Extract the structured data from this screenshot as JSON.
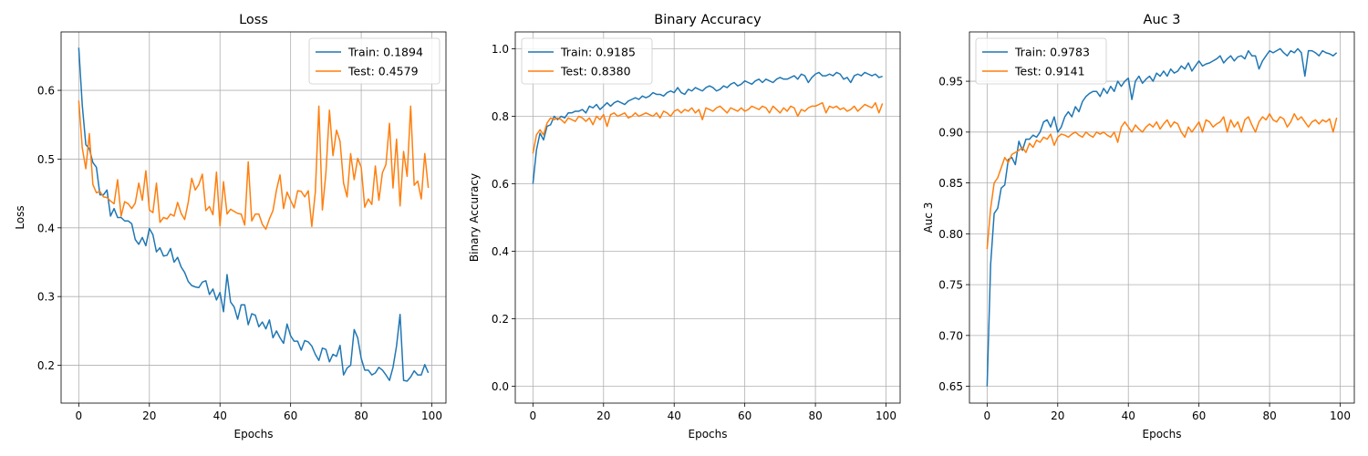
{
  "chart_data": [
    {
      "type": "line",
      "title": "Loss",
      "xlabel": "Epochs",
      "ylabel": "Loss",
      "xlim": [
        -5,
        104
      ],
      "ylim": [
        0.145,
        0.685
      ],
      "xticks": [
        0,
        20,
        40,
        60,
        80,
        100
      ],
      "yticks": [
        0.2,
        0.3,
        0.4,
        0.5,
        0.6
      ],
      "tick_decimals": 1,
      "grid": true,
      "legend_position": "top-right",
      "series": [
        {
          "name": "Train: 0.1894",
          "color": "#1f77b4",
          "x_start": 0,
          "values": [
            0.662,
            0.578,
            0.521,
            0.515,
            0.495,
            0.488,
            0.448,
            0.448,
            0.455,
            0.417,
            0.428,
            0.415,
            0.415,
            0.41,
            0.41,
            0.406,
            0.383,
            0.376,
            0.386,
            0.374,
            0.399,
            0.39,
            0.365,
            0.371,
            0.359,
            0.36,
            0.37,
            0.35,
            0.357,
            0.343,
            0.335,
            0.322,
            0.316,
            0.314,
            0.313,
            0.321,
            0.323,
            0.303,
            0.311,
            0.295,
            0.306,
            0.278,
            0.332,
            0.292,
            0.285,
            0.267,
            0.288,
            0.288,
            0.259,
            0.275,
            0.273,
            0.256,
            0.263,
            0.253,
            0.266,
            0.24,
            0.25,
            0.24,
            0.232,
            0.26,
            0.243,
            0.235,
            0.235,
            0.222,
            0.236,
            0.234,
            0.228,
            0.216,
            0.207,
            0.225,
            0.223,
            0.205,
            0.216,
            0.213,
            0.229,
            0.186,
            0.196,
            0.2,
            0.252,
            0.24,
            0.21,
            0.193,
            0.193,
            0.186,
            0.189,
            0.197,
            0.193,
            0.186,
            0.178,
            0.197,
            0.228,
            0.274,
            0.178,
            0.177,
            0.183,
            0.192,
            0.186,
            0.186,
            0.201,
            0.189
          ]
        },
        {
          "name": "Test: 0.4579",
          "color": "#ff7f0e",
          "x_start": 0,
          "values": [
            0.585,
            0.516,
            0.486,
            0.537,
            0.463,
            0.451,
            0.453,
            0.445,
            0.444,
            0.439,
            0.435,
            0.47,
            0.417,
            0.438,
            0.435,
            0.428,
            0.436,
            0.465,
            0.44,
            0.483,
            0.426,
            0.422,
            0.465,
            0.408,
            0.415,
            0.413,
            0.42,
            0.417,
            0.437,
            0.421,
            0.412,
            0.437,
            0.472,
            0.455,
            0.463,
            0.478,
            0.425,
            0.431,
            0.419,
            0.481,
            0.403,
            0.467,
            0.42,
            0.427,
            0.424,
            0.421,
            0.42,
            0.404,
            0.496,
            0.41,
            0.42,
            0.42,
            0.405,
            0.398,
            0.413,
            0.425,
            0.455,
            0.477,
            0.428,
            0.452,
            0.44,
            0.429,
            0.454,
            0.453,
            0.445,
            0.454,
            0.402,
            0.452,
            0.577,
            0.426,
            0.48,
            0.571,
            0.505,
            0.542,
            0.526,
            0.465,
            0.445,
            0.508,
            0.47,
            0.501,
            0.488,
            0.43,
            0.442,
            0.434,
            0.49,
            0.44,
            0.48,
            0.492,
            0.552,
            0.458,
            0.529,
            0.432,
            0.511,
            0.475,
            0.577,
            0.462,
            0.468,
            0.442,
            0.508,
            0.458
          ]
        }
      ]
    },
    {
      "type": "line",
      "title": "Binary Accuracy",
      "xlabel": "Epochs",
      "ylabel": "Binary Accuracy",
      "xlim": [
        -5,
        104
      ],
      "ylim": [
        -0.05,
        1.05
      ],
      "xticks": [
        0,
        20,
        40,
        60,
        80,
        100
      ],
      "yticks": [
        0.0,
        0.2,
        0.4,
        0.6,
        0.8,
        1.0
      ],
      "tick_decimals": 1,
      "grid": true,
      "legend_position": "top-left",
      "series": [
        {
          "name": "Train: 0.9185",
          "color": "#1f77b4",
          "x_start": 0,
          "values": [
            0.6,
            0.7,
            0.75,
            0.73,
            0.77,
            0.775,
            0.8,
            0.79,
            0.8,
            0.795,
            0.81,
            0.81,
            0.815,
            0.815,
            0.82,
            0.81,
            0.83,
            0.825,
            0.835,
            0.82,
            0.83,
            0.84,
            0.83,
            0.84,
            0.845,
            0.84,
            0.835,
            0.845,
            0.85,
            0.855,
            0.85,
            0.86,
            0.855,
            0.86,
            0.87,
            0.865,
            0.865,
            0.86,
            0.87,
            0.875,
            0.87,
            0.885,
            0.87,
            0.865,
            0.88,
            0.875,
            0.885,
            0.88,
            0.875,
            0.885,
            0.89,
            0.885,
            0.875,
            0.88,
            0.89,
            0.885,
            0.895,
            0.9,
            0.89,
            0.895,
            0.905,
            0.9,
            0.895,
            0.905,
            0.91,
            0.9,
            0.91,
            0.905,
            0.9,
            0.91,
            0.915,
            0.91,
            0.91,
            0.915,
            0.92,
            0.91,
            0.925,
            0.92,
            0.9,
            0.915,
            0.925,
            0.93,
            0.92,
            0.92,
            0.925,
            0.92,
            0.93,
            0.925,
            0.91,
            0.915,
            0.9,
            0.92,
            0.925,
            0.92,
            0.93,
            0.925,
            0.92,
            0.925,
            0.915,
            0.9185
          ]
        },
        {
          "name": "Test: 0.8380",
          "color": "#ff7f0e",
          "x_start": 0,
          "values": [
            0.69,
            0.745,
            0.76,
            0.745,
            0.78,
            0.795,
            0.79,
            0.795,
            0.79,
            0.78,
            0.795,
            0.79,
            0.785,
            0.8,
            0.795,
            0.785,
            0.795,
            0.775,
            0.8,
            0.79,
            0.805,
            0.77,
            0.805,
            0.81,
            0.8,
            0.805,
            0.81,
            0.795,
            0.8,
            0.81,
            0.8,
            0.805,
            0.81,
            0.805,
            0.8,
            0.81,
            0.795,
            0.815,
            0.81,
            0.8,
            0.815,
            0.82,
            0.81,
            0.82,
            0.815,
            0.825,
            0.81,
            0.82,
            0.79,
            0.825,
            0.82,
            0.815,
            0.825,
            0.83,
            0.82,
            0.81,
            0.825,
            0.82,
            0.815,
            0.825,
            0.815,
            0.82,
            0.83,
            0.825,
            0.82,
            0.83,
            0.825,
            0.81,
            0.83,
            0.82,
            0.81,
            0.825,
            0.815,
            0.83,
            0.825,
            0.8,
            0.82,
            0.815,
            0.825,
            0.83,
            0.83,
            0.835,
            0.84,
            0.81,
            0.83,
            0.825,
            0.83,
            0.82,
            0.825,
            0.815,
            0.82,
            0.83,
            0.815,
            0.825,
            0.835,
            0.83,
            0.825,
            0.84,
            0.81,
            0.838
          ]
        }
      ]
    },
    {
      "type": "line",
      "title": "Auc 3",
      "xlabel": "Epochs",
      "ylabel": "Auc 3",
      "xlim": [
        -5,
        104
      ],
      "ylim": [
        0.6335,
        0.9985
      ],
      "xticks": [
        0,
        20,
        40,
        60,
        80,
        100
      ],
      "yticks": [
        0.65,
        0.7,
        0.75,
        0.8,
        0.85,
        0.9,
        0.95
      ],
      "tick_decimals": 2,
      "grid": true,
      "legend_position": "top-left",
      "series": [
        {
          "name": "Train: 0.9783",
          "color": "#1f77b4",
          "x_start": 0,
          "values": [
            0.65,
            0.77,
            0.82,
            0.825,
            0.845,
            0.848,
            0.873,
            0.875,
            0.868,
            0.891,
            0.882,
            0.893,
            0.893,
            0.897,
            0.895,
            0.9,
            0.91,
            0.912,
            0.905,
            0.915,
            0.9,
            0.905,
            0.915,
            0.92,
            0.915,
            0.925,
            0.92,
            0.93,
            0.935,
            0.938,
            0.94,
            0.94,
            0.935,
            0.943,
            0.938,
            0.945,
            0.94,
            0.95,
            0.945,
            0.95,
            0.953,
            0.932,
            0.95,
            0.955,
            0.948,
            0.952,
            0.955,
            0.95,
            0.958,
            0.955,
            0.96,
            0.955,
            0.962,
            0.958,
            0.96,
            0.965,
            0.962,
            0.968,
            0.96,
            0.965,
            0.97,
            0.965,
            0.967,
            0.968,
            0.97,
            0.972,
            0.975,
            0.968,
            0.972,
            0.975,
            0.97,
            0.974,
            0.975,
            0.972,
            0.98,
            0.975,
            0.975,
            0.962,
            0.97,
            0.975,
            0.98,
            0.978,
            0.98,
            0.982,
            0.978,
            0.975,
            0.98,
            0.978,
            0.982,
            0.978,
            0.955,
            0.98,
            0.98,
            0.978,
            0.975,
            0.98,
            0.978,
            0.977,
            0.975,
            0.978
          ]
        },
        {
          "name": "Test: 0.9141",
          "color": "#ff7f0e",
          "x_start": 0,
          "values": [
            0.785,
            0.825,
            0.85,
            0.855,
            0.865,
            0.875,
            0.87,
            0.878,
            0.88,
            0.882,
            0.885,
            0.88,
            0.889,
            0.885,
            0.892,
            0.89,
            0.895,
            0.893,
            0.898,
            0.887,
            0.895,
            0.898,
            0.897,
            0.895,
            0.898,
            0.9,
            0.897,
            0.895,
            0.9,
            0.897,
            0.895,
            0.9,
            0.898,
            0.9,
            0.897,
            0.895,
            0.9,
            0.89,
            0.905,
            0.91,
            0.905,
            0.9,
            0.907,
            0.903,
            0.9,
            0.905,
            0.908,
            0.905,
            0.91,
            0.903,
            0.908,
            0.912,
            0.905,
            0.91,
            0.908,
            0.9,
            0.895,
            0.905,
            0.9,
            0.905,
            0.91,
            0.9,
            0.912,
            0.91,
            0.905,
            0.908,
            0.91,
            0.915,
            0.9,
            0.912,
            0.905,
            0.91,
            0.9,
            0.912,
            0.915,
            0.907,
            0.9,
            0.91,
            0.915,
            0.912,
            0.918,
            0.912,
            0.91,
            0.915,
            0.913,
            0.905,
            0.91,
            0.918,
            0.912,
            0.915,
            0.91,
            0.905,
            0.91,
            0.912,
            0.908,
            0.912,
            0.91,
            0.913,
            0.9,
            0.9141
          ]
        }
      ]
    }
  ]
}
